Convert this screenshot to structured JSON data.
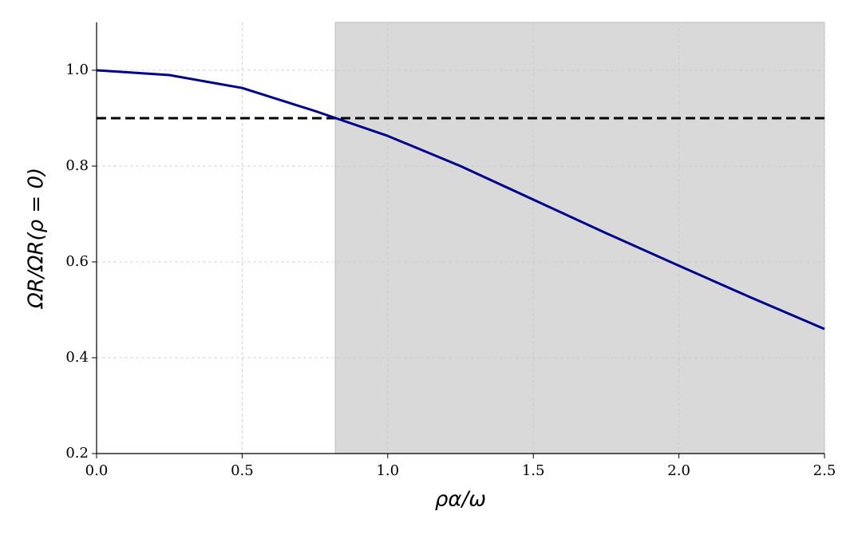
{
  "chart_data": {
    "type": "line",
    "x_label": "ρα/ω",
    "y_label": "ΩR/ΩR(ρ = 0)",
    "x": [
      0,
      0.25,
      0.5,
      0.75,
      1.0,
      1.25,
      1.5,
      1.75,
      2.0,
      2.25,
      2.5
    ],
    "series": [
      {
        "name": "ΩR/ΩR(ρ = 0)",
        "color": "#00008b",
        "values": [
          1.0,
          0.99,
          0.963,
          0.915,
          0.863,
          0.8,
          0.73,
          0.66,
          0.592,
          0.525,
          0.46
        ]
      }
    ],
    "reference_line": {
      "value": 0.9,
      "color": "#000000"
    },
    "shaded_region": {
      "x": [
        0.82,
        2.5
      ],
      "color": "#d9d9d9"
    },
    "xlim": [
      0,
      2.5
    ],
    "ylim": [
      0.2,
      1.1
    ],
    "xticks": [
      {
        "value": 0,
        "label": "0.0"
      },
      0.5,
      {
        "value": 1,
        "label": "1.0"
      },
      1.5,
      {
        "value": 2,
        "label": "2.0"
      },
      2.5
    ],
    "yticks": [
      0.2,
      0.4,
      0.6,
      0.8,
      {
        "value": 1,
        "label": "1.0"
      }
    ],
    "grid": true
  }
}
